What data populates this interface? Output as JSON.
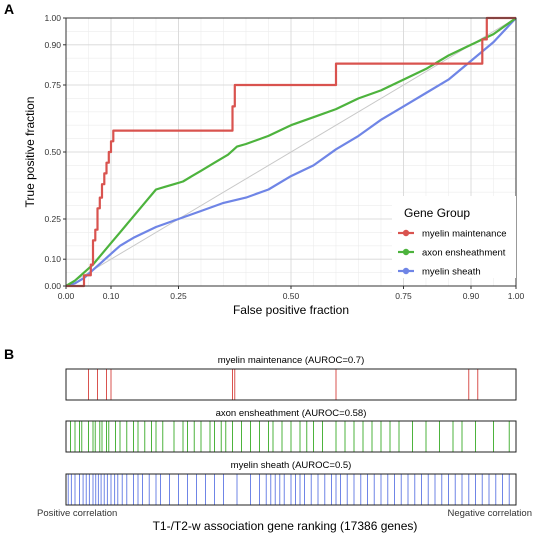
{
  "panels": {
    "a_label": "A",
    "b_label": "B"
  },
  "chart_data": [
    {
      "type": "line",
      "chart_kind": "ROC curve",
      "xlabel": "False positive fraction",
      "ylabel": "True positive fraction",
      "xlim": [
        0,
        1
      ],
      "ylim": [
        0,
        1
      ],
      "x_ticks": [
        0.0,
        0.1,
        0.25,
        0.5,
        0.75,
        0.9,
        1.0
      ],
      "x_tick_labels": [
        "0.00",
        "0.10",
        "0.25",
        "0.50",
        "0.75",
        "0.90",
        "1.00"
      ],
      "y_ticks": [
        0.0,
        0.1,
        0.25,
        0.5,
        0.75,
        0.9,
        1.0
      ],
      "y_tick_labels": [
        "0.00",
        "0.10",
        "0.25",
        "0.50",
        "0.75",
        "0.90",
        "1.00"
      ],
      "grid": true,
      "diagonal_reference": true,
      "legend": {
        "title": "Gene Group",
        "position": "bottom-right"
      },
      "series": [
        {
          "name": "myelin maintenance",
          "color": "#d9534f",
          "points": [
            [
              0,
              0
            ],
            [
              0.04,
              0
            ],
            [
              0.04,
              0.04
            ],
            [
              0.055,
              0.04
            ],
            [
              0.055,
              0.08
            ],
            [
              0.06,
              0.08
            ],
            [
              0.06,
              0.17
            ],
            [
              0.065,
              0.17
            ],
            [
              0.065,
              0.21
            ],
            [
              0.07,
              0.21
            ],
            [
              0.07,
              0.29
            ],
            [
              0.075,
              0.29
            ],
            [
              0.075,
              0.33
            ],
            [
              0.08,
              0.33
            ],
            [
              0.08,
              0.38
            ],
            [
              0.085,
              0.38
            ],
            [
              0.085,
              0.42
            ],
            [
              0.09,
              0.42
            ],
            [
              0.09,
              0.46
            ],
            [
              0.095,
              0.46
            ],
            [
              0.095,
              0.5
            ],
            [
              0.1,
              0.5
            ],
            [
              0.1,
              0.54
            ],
            [
              0.105,
              0.54
            ],
            [
              0.105,
              0.58
            ],
            [
              0.37,
              0.58
            ],
            [
              0.37,
              0.67
            ],
            [
              0.375,
              0.67
            ],
            [
              0.375,
              0.75
            ],
            [
              0.6,
              0.75
            ],
            [
              0.6,
              0.83
            ],
            [
              0.925,
              0.83
            ],
            [
              0.925,
              0.92
            ],
            [
              0.935,
              0.92
            ],
            [
              0.935,
              1
            ],
            [
              1,
              1
            ]
          ]
        },
        {
          "name": "axon ensheathment",
          "color": "#4db33d",
          "points": [
            [
              0,
              0
            ],
            [
              0.02,
              0.02
            ],
            [
              0.04,
              0.05
            ],
            [
              0.06,
              0.08
            ],
            [
              0.08,
              0.12
            ],
            [
              0.1,
              0.16
            ],
            [
              0.12,
              0.2
            ],
            [
              0.15,
              0.26
            ],
            [
              0.18,
              0.32
            ],
            [
              0.2,
              0.36
            ],
            [
              0.22,
              0.37
            ],
            [
              0.24,
              0.38
            ],
            [
              0.26,
              0.39
            ],
            [
              0.28,
              0.41
            ],
            [
              0.3,
              0.43
            ],
            [
              0.33,
              0.46
            ],
            [
              0.36,
              0.49
            ],
            [
              0.38,
              0.52
            ],
            [
              0.4,
              0.53
            ],
            [
              0.45,
              0.56
            ],
            [
              0.5,
              0.6
            ],
            [
              0.55,
              0.63
            ],
            [
              0.6,
              0.66
            ],
            [
              0.65,
              0.7
            ],
            [
              0.7,
              0.73
            ],
            [
              0.75,
              0.77
            ],
            [
              0.8,
              0.81
            ],
            [
              0.85,
              0.86
            ],
            [
              0.9,
              0.9
            ],
            [
              0.95,
              0.94
            ],
            [
              1,
              1
            ]
          ]
        },
        {
          "name": "myelin sheath",
          "color": "#6f85e6",
          "points": [
            [
              0,
              0
            ],
            [
              0.02,
              0.01
            ],
            [
              0.04,
              0.03
            ],
            [
              0.06,
              0.06
            ],
            [
              0.08,
              0.09
            ],
            [
              0.1,
              0.12
            ],
            [
              0.12,
              0.15
            ],
            [
              0.15,
              0.18
            ],
            [
              0.2,
              0.22
            ],
            [
              0.25,
              0.25
            ],
            [
              0.3,
              0.28
            ],
            [
              0.35,
              0.31
            ],
            [
              0.4,
              0.33
            ],
            [
              0.45,
              0.36
            ],
            [
              0.5,
              0.41
            ],
            [
              0.55,
              0.45
            ],
            [
              0.6,
              0.51
            ],
            [
              0.65,
              0.56
            ],
            [
              0.7,
              0.62
            ],
            [
              0.75,
              0.67
            ],
            [
              0.8,
              0.72
            ],
            [
              0.85,
              0.77
            ],
            [
              0.9,
              0.84
            ],
            [
              0.95,
              0.91
            ],
            [
              1,
              1
            ]
          ]
        }
      ]
    },
    {
      "type": "barcode",
      "xlabel": "T1-/T2-w association gene ranking (17386 genes)",
      "left_annotation": "Positive correlation",
      "right_annotation": "Negative correlation",
      "total_genes": 17386,
      "tracks": [
        {
          "title": "myelin maintenance (AUROC=0.7)",
          "color": "#d9534f",
          "ranks": [
            0.05,
            0.07,
            0.09,
            0.1,
            0.37,
            0.375,
            0.6,
            0.895,
            0.915
          ]
        },
        {
          "title": "axon ensheathment (AUROC=0.58)",
          "color": "#4db33d",
          "ranks": [
            0.01,
            0.02,
            0.03,
            0.035,
            0.05,
            0.06,
            0.065,
            0.075,
            0.08,
            0.09,
            0.095,
            0.11,
            0.12,
            0.135,
            0.15,
            0.16,
            0.175,
            0.19,
            0.2,
            0.215,
            0.24,
            0.26,
            0.27,
            0.285,
            0.3,
            0.32,
            0.33,
            0.345,
            0.355,
            0.37,
            0.39,
            0.41,
            0.43,
            0.45,
            0.46,
            0.48,
            0.5,
            0.52,
            0.535,
            0.55,
            0.57,
            0.6,
            0.62,
            0.64,
            0.66,
            0.68,
            0.7,
            0.72,
            0.74,
            0.77,
            0.8,
            0.83,
            0.86,
            0.88,
            0.91,
            0.95,
            0.985
          ]
        },
        {
          "title": "myelin sheath (AUROC=0.5)",
          "color": "#6f85e6",
          "ranks": [
            0.005,
            0.012,
            0.02,
            0.03,
            0.038,
            0.045,
            0.052,
            0.06,
            0.066,
            0.072,
            0.078,
            0.085,
            0.092,
            0.1,
            0.108,
            0.115,
            0.125,
            0.135,
            0.15,
            0.16,
            0.17,
            0.185,
            0.2,
            0.21,
            0.23,
            0.25,
            0.27,
            0.29,
            0.31,
            0.33,
            0.35,
            0.38,
            0.41,
            0.43,
            0.445,
            0.455,
            0.465,
            0.475,
            0.485,
            0.5,
            0.51,
            0.52,
            0.53,
            0.545,
            0.56,
            0.575,
            0.59,
            0.6,
            0.61,
            0.625,
            0.64,
            0.655,
            0.67,
            0.685,
            0.7,
            0.715,
            0.73,
            0.745,
            0.76,
            0.775,
            0.79,
            0.805,
            0.82,
            0.835,
            0.85,
            0.865,
            0.88,
            0.895,
            0.91,
            0.925,
            0.94,
            0.955,
            0.97,
            0.985
          ]
        }
      ]
    }
  ]
}
